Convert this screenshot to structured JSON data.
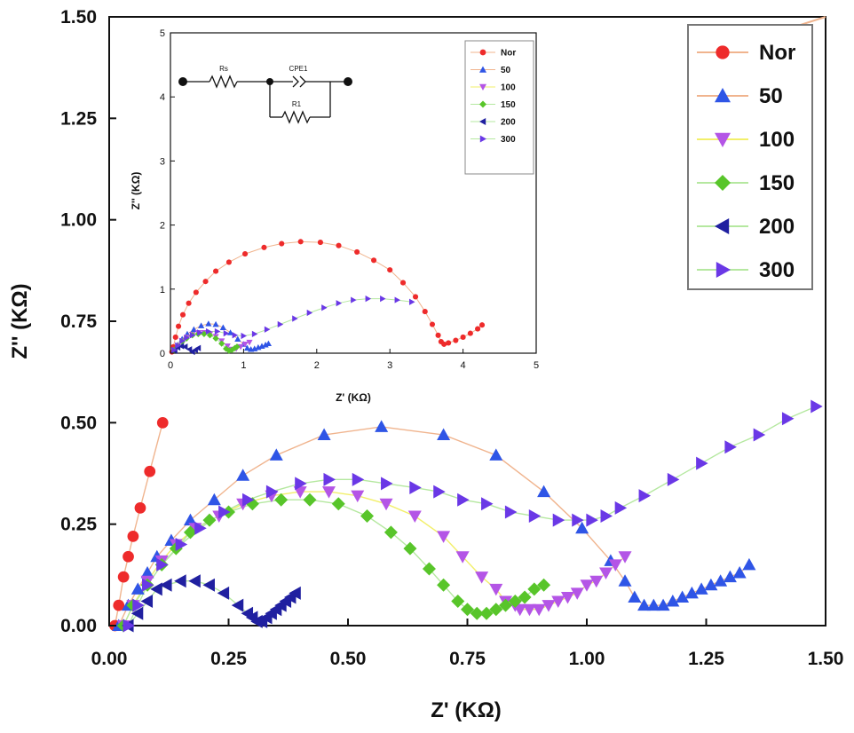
{
  "chart_data": [
    {
      "type": "scatter",
      "title": "",
      "xlabel": "Z' (KΩ)",
      "ylabel": "Z'' (KΩ)",
      "xlim": [
        0,
        1.5
      ],
      "ylim": [
        0,
        1.5
      ],
      "xticks": [
        "0.00",
        "0.25",
        "0.50",
        "0.75",
        "1.00",
        "1.25",
        "1.50"
      ],
      "yticks": [
        "0.00",
        "0.25",
        "0.50",
        "0.75",
        "1.00",
        "1.25",
        "1.50"
      ],
      "legend_position": "top-right",
      "grid": false,
      "series": [
        {
          "name": "Nor",
          "marker": "circle",
          "color": "#ee2b2b",
          "line_color": "#f0b48e",
          "x": [
            0.012,
            0.02,
            0.03,
            0.04,
            0.05,
            0.065,
            0.085,
            0.112
          ],
          "y": [
            0.0,
            0.05,
            0.12,
            0.17,
            0.22,
            0.29,
            0.38,
            0.5
          ]
        },
        {
          "name": "50",
          "marker": "triangle-up",
          "color": "#2f55e6",
          "line_color": "#f0b48e",
          "x": [
            0.02,
            0.04,
            0.06,
            0.08,
            0.1,
            0.13,
            0.17,
            0.22,
            0.28,
            0.35,
            0.45,
            0.57,
            0.7,
            0.81,
            0.91,
            0.99,
            1.05,
            1.08,
            1.1,
            1.12,
            1.14,
            1.16,
            1.18,
            1.2,
            1.22,
            1.24,
            1.26,
            1.28,
            1.3,
            1.32,
            1.34
          ],
          "y": [
            0.0,
            0.05,
            0.09,
            0.13,
            0.17,
            0.21,
            0.26,
            0.31,
            0.37,
            0.42,
            0.47,
            0.49,
            0.47,
            0.42,
            0.33,
            0.24,
            0.16,
            0.11,
            0.07,
            0.05,
            0.05,
            0.05,
            0.06,
            0.07,
            0.08,
            0.09,
            0.1,
            0.11,
            0.12,
            0.13,
            0.15
          ]
        },
        {
          "name": "100",
          "marker": "triangle-down",
          "color": "#b455e6",
          "line_color": "#f2ef6a",
          "x": [
            0.03,
            0.05,
            0.08,
            0.11,
            0.14,
            0.18,
            0.23,
            0.28,
            0.34,
            0.4,
            0.46,
            0.52,
            0.58,
            0.64,
            0.7,
            0.74,
            0.78,
            0.81,
            0.83,
            0.85,
            0.86,
            0.88,
            0.9,
            0.92,
            0.94,
            0.96,
            0.98,
            1.0,
            1.02,
            1.04,
            1.06,
            1.08
          ],
          "y": [
            0.0,
            0.05,
            0.11,
            0.16,
            0.2,
            0.24,
            0.27,
            0.3,
            0.32,
            0.33,
            0.33,
            0.32,
            0.3,
            0.27,
            0.22,
            0.17,
            0.12,
            0.09,
            0.06,
            0.05,
            0.04,
            0.04,
            0.04,
            0.05,
            0.06,
            0.07,
            0.08,
            0.1,
            0.11,
            0.13,
            0.15,
            0.17
          ]
        },
        {
          "name": "150",
          "marker": "diamond",
          "color": "#58c52a",
          "line_color": "#b5e8a0",
          "x": [
            0.03,
            0.05,
            0.08,
            0.11,
            0.14,
            0.17,
            0.21,
            0.25,
            0.3,
            0.36,
            0.42,
            0.48,
            0.54,
            0.59,
            0.63,
            0.67,
            0.7,
            0.73,
            0.75,
            0.77,
            0.79,
            0.81,
            0.83,
            0.85,
            0.87,
            0.89,
            0.91
          ],
          "y": [
            0.0,
            0.05,
            0.1,
            0.15,
            0.19,
            0.23,
            0.26,
            0.28,
            0.3,
            0.31,
            0.31,
            0.3,
            0.27,
            0.23,
            0.19,
            0.14,
            0.1,
            0.06,
            0.04,
            0.03,
            0.03,
            0.04,
            0.05,
            0.06,
            0.07,
            0.09,
            0.1
          ]
        },
        {
          "name": "200",
          "marker": "triangle-left",
          "color": "#2020a0",
          "line_color": "#b5e8a0",
          "x": [
            0.04,
            0.06,
            0.08,
            0.1,
            0.12,
            0.15,
            0.18,
            0.21,
            0.24,
            0.27,
            0.29,
            0.3,
            0.31,
            0.32,
            0.33,
            0.34,
            0.35,
            0.36,
            0.37,
            0.38,
            0.39
          ],
          "y": [
            0.0,
            0.03,
            0.06,
            0.09,
            0.1,
            0.11,
            0.11,
            0.1,
            0.08,
            0.05,
            0.03,
            0.02,
            0.01,
            0.01,
            0.02,
            0.03,
            0.04,
            0.05,
            0.06,
            0.07,
            0.08
          ]
        },
        {
          "name": "300",
          "marker": "triangle-right",
          "color": "#6a38e6",
          "line_color": "#b5e8a0",
          "x": [
            0.04,
            0.06,
            0.08,
            0.11,
            0.15,
            0.19,
            0.24,
            0.29,
            0.34,
            0.4,
            0.46,
            0.52,
            0.58,
            0.64,
            0.69,
            0.74,
            0.79,
            0.84,
            0.89,
            0.94,
            0.98,
            1.01,
            1.04,
            1.07,
            1.12,
            1.18,
            1.24,
            1.3,
            1.36,
            1.42,
            1.48
          ],
          "y": [
            0.0,
            0.05,
            0.1,
            0.15,
            0.2,
            0.24,
            0.28,
            0.31,
            0.33,
            0.35,
            0.36,
            0.36,
            0.35,
            0.34,
            0.33,
            0.31,
            0.3,
            0.28,
            0.27,
            0.26,
            0.26,
            0.26,
            0.27,
            0.29,
            0.32,
            0.36,
            0.4,
            0.44,
            0.47,
            0.51,
            0.54
          ]
        }
      ],
      "partial_curve": {
        "x": [
          1.38,
          1.42,
          1.5
        ],
        "y": [
          1.46,
          1.47,
          1.5
        ]
      }
    },
    {
      "type": "scatter",
      "title": "",
      "xlabel": "Z' (KΩ)",
      "ylabel": "Z'' (KΩ)",
      "xlim": [
        0,
        5
      ],
      "ylim": [
        0,
        5
      ],
      "xticks": [
        "0",
        "1",
        "2",
        "3",
        "4",
        "5"
      ],
      "yticks": [
        "0",
        "1",
        "2",
        "3",
        "4",
        "5"
      ],
      "legend_position": "top-right",
      "circuit": {
        "labels": [
          "Rs",
          "CPE1",
          "R1"
        ]
      },
      "series": [
        {
          "name": "Nor",
          "marker": "circle",
          "color": "#ee2b2b",
          "line_color": "#f0b48e",
          "x": [
            0.02,
            0.04,
            0.07,
            0.11,
            0.17,
            0.25,
            0.35,
            0.48,
            0.62,
            0.8,
            1.02,
            1.28,
            1.52,
            1.78,
            2.05,
            2.3,
            2.55,
            2.78,
            3.0,
            3.18,
            3.35,
            3.48,
            3.58,
            3.66,
            3.7,
            3.74,
            3.8,
            3.9,
            4.0,
            4.1,
            4.2,
            4.26
          ],
          "y": [
            0.02,
            0.1,
            0.25,
            0.42,
            0.6,
            0.78,
            0.95,
            1.12,
            1.28,
            1.42,
            1.55,
            1.65,
            1.71,
            1.74,
            1.73,
            1.68,
            1.58,
            1.45,
            1.3,
            1.1,
            0.88,
            0.65,
            0.45,
            0.28,
            0.18,
            0.14,
            0.16,
            0.2,
            0.25,
            0.31,
            0.38,
            0.44
          ]
        },
        {
          "name": "50",
          "marker": "triangle-up",
          "color": "#2f55e6",
          "line_color": "#f0b48e",
          "x": [
            0.05,
            0.1,
            0.16,
            0.23,
            0.32,
            0.42,
            0.52,
            0.62,
            0.72,
            0.82,
            0.92,
            1.0,
            1.05,
            1.1,
            1.15,
            1.2,
            1.25,
            1.3,
            1.34
          ],
          "y": [
            0.05,
            0.13,
            0.22,
            0.3,
            0.37,
            0.43,
            0.46,
            0.45,
            0.4,
            0.32,
            0.22,
            0.14,
            0.08,
            0.06,
            0.07,
            0.09,
            0.11,
            0.13,
            0.15
          ]
        },
        {
          "name": "100",
          "marker": "triangle-down",
          "color": "#b455e6",
          "line_color": "#f2ef6a",
          "x": [
            0.05,
            0.1,
            0.16,
            0.23,
            0.3,
            0.38,
            0.46,
            0.54,
            0.62,
            0.7,
            0.78,
            0.84,
            0.9,
            0.96,
            1.02,
            1.08
          ],
          "y": [
            0.05,
            0.12,
            0.19,
            0.25,
            0.29,
            0.32,
            0.32,
            0.3,
            0.26,
            0.19,
            0.11,
            0.06,
            0.07,
            0.1,
            0.14,
            0.17
          ]
        },
        {
          "name": "150",
          "marker": "diamond",
          "color": "#58c52a",
          "line_color": "#b5e8a0",
          "x": [
            0.05,
            0.1,
            0.16,
            0.22,
            0.3,
            0.38,
            0.46,
            0.54,
            0.62,
            0.7,
            0.76,
            0.8,
            0.84,
            0.88,
            0.91
          ],
          "y": [
            0.05,
            0.11,
            0.18,
            0.23,
            0.28,
            0.3,
            0.3,
            0.28,
            0.23,
            0.15,
            0.07,
            0.04,
            0.05,
            0.08,
            0.1
          ]
        },
        {
          "name": "200",
          "marker": "triangle-left",
          "color": "#2020a0",
          "line_color": "#b5e8a0",
          "x": [
            0.06,
            0.1,
            0.15,
            0.2,
            0.26,
            0.3,
            0.34,
            0.38
          ],
          "y": [
            0.04,
            0.09,
            0.11,
            0.1,
            0.06,
            0.02,
            0.05,
            0.08
          ]
        },
        {
          "name": "300",
          "marker": "triangle-right",
          "color": "#6a38e6",
          "line_color": "#b5e8a0",
          "x": [
            0.05,
            0.1,
            0.16,
            0.22,
            0.3,
            0.4,
            0.52,
            0.64,
            0.76,
            0.88,
            1.0,
            1.15,
            1.32,
            1.5,
            1.7,
            1.9,
            2.1,
            2.3,
            2.5,
            2.7,
            2.9,
            3.1,
            3.3
          ],
          "y": [
            0.05,
            0.12,
            0.19,
            0.24,
            0.28,
            0.32,
            0.34,
            0.34,
            0.31,
            0.28,
            0.27,
            0.3,
            0.37,
            0.45,
            0.54,
            0.63,
            0.71,
            0.78,
            0.83,
            0.85,
            0.85,
            0.83,
            0.8
          ]
        }
      ]
    }
  ]
}
